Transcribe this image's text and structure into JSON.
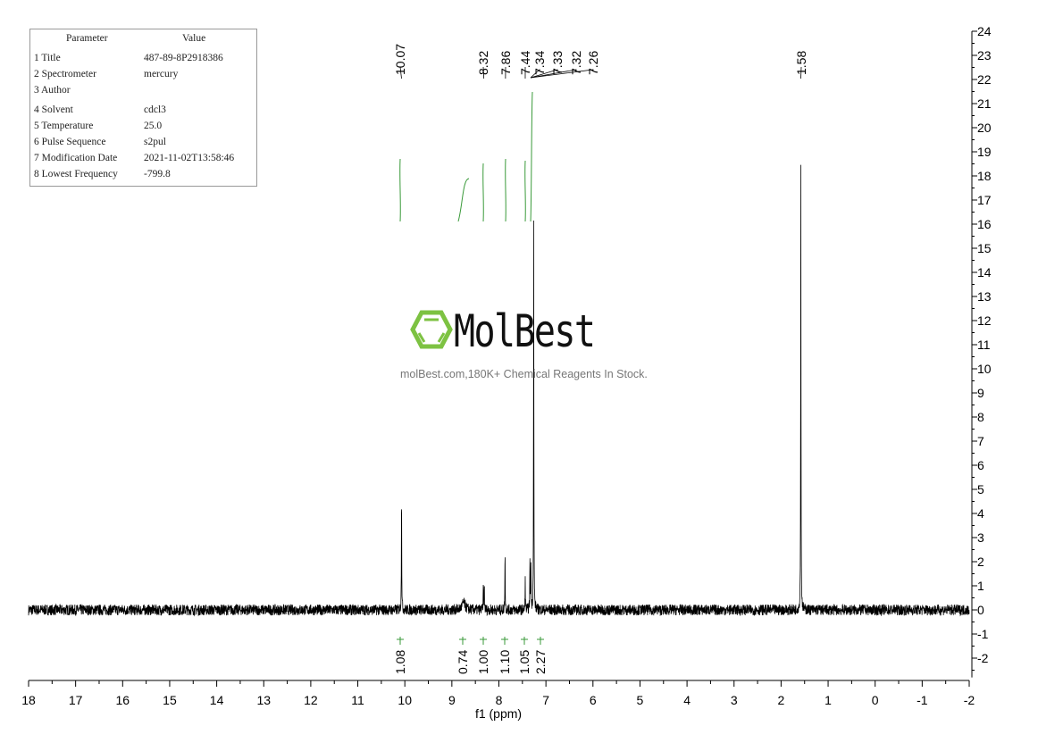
{
  "parameters": {
    "header": [
      "Parameter",
      "Value"
    ],
    "rows": [
      [
        "1 Title",
        "487-89-8P2918386"
      ],
      [
        "2 Spectrometer",
        "mercury"
      ],
      [
        "3 Author",
        ""
      ],
      [
        "4 Solvent",
        "cdcl3"
      ],
      [
        "5 Temperature",
        "25.0"
      ],
      [
        "6 Pulse Sequence",
        "s2pul"
      ],
      [
        "7 Modification Date",
        "2021-11-02T13:58:46"
      ],
      [
        "8 Lowest Frequency",
        "-799.8"
      ]
    ]
  },
  "watermark": {
    "brand": "MolBest",
    "tagline": "molBest.com,180K+ Chemical Reagents In Stock.",
    "color": "#7dc242"
  },
  "chart_data": {
    "type": "line",
    "title": "",
    "xlabel": "f1 (ppm)",
    "ylabel": "",
    "xlim": [
      18,
      -2
    ],
    "ylim": [
      -3,
      24
    ],
    "x_ticks": [
      "18",
      "17",
      "16",
      "15",
      "14",
      "13",
      "12",
      "11",
      "10",
      "9",
      "8",
      "7",
      "6",
      "5",
      "4",
      "3",
      "2",
      "1",
      "0",
      "-1",
      "-2"
    ],
    "y_ticks": [
      "-2",
      "-1",
      "0",
      "1",
      "2",
      "3",
      "4",
      "5",
      "6",
      "7",
      "8",
      "9",
      "10",
      "11",
      "12",
      "13",
      "14",
      "15",
      "16",
      "17",
      "18",
      "19",
      "20",
      "21",
      "22",
      "23",
      "24"
    ],
    "grid": false,
    "line_color": "#000000",
    "integral_color": "#3a9a3a",
    "peaks": [
      {
        "ppm": 10.07,
        "height": 5.3
      },
      {
        "ppm": 8.75,
        "height": 0.3,
        "broad": true
      },
      {
        "ppm": 8.33,
        "height": 1.1
      },
      {
        "ppm": 8.31,
        "height": 1.0
      },
      {
        "ppm": 7.87,
        "height": 2.6
      },
      {
        "ppm": 7.44,
        "height": 1.3
      },
      {
        "ppm": 7.34,
        "height": 2.2
      },
      {
        "ppm": 7.32,
        "height": 2.0
      },
      {
        "ppm": 7.26,
        "height": 16.2
      },
      {
        "ppm": 1.58,
        "height": 18.3
      }
    ],
    "peak_labels": [
      "10.07",
      "8.32",
      "7.86",
      "7.44",
      "7.34",
      "7.33",
      "7.32",
      "7.26",
      "1.58"
    ],
    "peak_label_ppm": [
      10.07,
      8.32,
      7.86,
      7.44,
      7.34,
      7.33,
      7.32,
      7.26,
      1.58
    ],
    "integrals": [
      {
        "ppm": 10.07,
        "value": "1.08"
      },
      {
        "ppm": 8.75,
        "value": "0.74"
      },
      {
        "ppm": 8.32,
        "value": "1.00"
      },
      {
        "ppm": 7.86,
        "value": "1.10"
      },
      {
        "ppm": 7.44,
        "value": "1.05"
      },
      {
        "ppm": 7.3,
        "value": "2.27"
      }
    ]
  }
}
